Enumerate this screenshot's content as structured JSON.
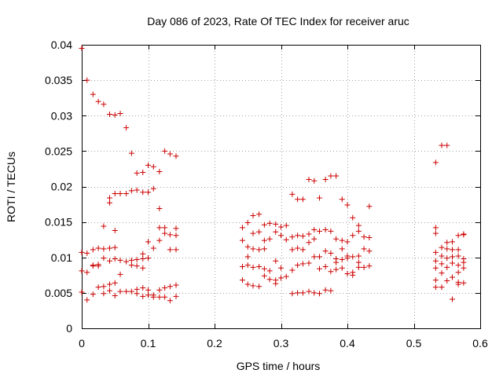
{
  "chart_data": {
    "type": "scatter",
    "title": "Day 086 of 2023, Rate Of TEC Index for receiver aruc",
    "xlabel": "GPS time / hours",
    "ylabel": "ROTI / TECUs",
    "xlim": [
      0,
      0.6
    ],
    "ylim": [
      0,
      0.04
    ],
    "xticks": [
      0,
      0.1,
      0.2,
      0.3,
      0.4,
      0.5,
      0.6
    ],
    "xtick_labels": [
      "0",
      "0.1",
      "0.2",
      "0.3",
      "0.4",
      "0.5",
      "0.6"
    ],
    "yticks": [
      0,
      0.005,
      0.01,
      0.015,
      0.02,
      0.025,
      0.03,
      0.035,
      0.04
    ],
    "ytick_labels": [
      "0",
      "0.005",
      "0.01",
      "0.015",
      "0.02",
      "0.025",
      "0.03",
      "0.035",
      "0.04"
    ],
    "grid": true,
    "marker": "+",
    "marker_color": "#cc0000",
    "series": [
      {
        "name": "ROTI",
        "points": [
          [
            0.0,
            0.0395
          ],
          [
            0.008,
            0.035
          ],
          [
            0.017,
            0.033
          ],
          [
            0.025,
            0.032
          ],
          [
            0.033,
            0.0316
          ],
          [
            0.042,
            0.0302
          ],
          [
            0.05,
            0.0301
          ],
          [
            0.058,
            0.0303
          ],
          [
            0.067,
            0.0283
          ],
          [
            0.075,
            0.0247
          ],
          [
            0.083,
            0.0219
          ],
          [
            0.092,
            0.022
          ],
          [
            0.1,
            0.023
          ],
          [
            0.108,
            0.0228
          ],
          [
            0.117,
            0.0221
          ],
          [
            0.125,
            0.025
          ],
          [
            0.133,
            0.0246
          ],
          [
            0.142,
            0.0243
          ],
          [
            0.033,
            0.0144
          ],
          [
            0.042,
            0.0177
          ],
          [
            0.042,
            0.0184
          ],
          [
            0.05,
            0.019
          ],
          [
            0.058,
            0.019
          ],
          [
            0.067,
            0.019
          ],
          [
            0.075,
            0.0194
          ],
          [
            0.083,
            0.0195
          ],
          [
            0.092,
            0.0192
          ],
          [
            0.1,
            0.0192
          ],
          [
            0.108,
            0.0197
          ],
          [
            0.117,
            0.0169
          ],
          [
            0.05,
            0.0138
          ],
          [
            0.0,
            0.0107
          ],
          [
            0.008,
            0.0106
          ],
          [
            0.017,
            0.0111
          ],
          [
            0.025,
            0.0113
          ],
          [
            0.033,
            0.0112
          ],
          [
            0.042,
            0.0113
          ],
          [
            0.05,
            0.0114
          ],
          [
            0.0,
            0.0081
          ],
          [
            0.008,
            0.0079
          ],
          [
            0.017,
            0.0089
          ],
          [
            0.025,
            0.009
          ],
          [
            0.033,
            0.0099
          ],
          [
            0.042,
            0.0095
          ],
          [
            0.05,
            0.0098
          ],
          [
            0.058,
            0.0096
          ],
          [
            0.067,
            0.0094
          ],
          [
            0.075,
            0.0096
          ],
          [
            0.083,
            0.0097
          ],
          [
            0.092,
            0.0098
          ],
          [
            0.1,
            0.0099
          ],
          [
            0.075,
            0.0089
          ],
          [
            0.083,
            0.0088
          ],
          [
            0.092,
            0.0085
          ],
          [
            0.092,
            0.0105
          ],
          [
            0.1,
            0.0122
          ],
          [
            0.108,
            0.0113
          ],
          [
            0.117,
            0.0124
          ],
          [
            0.117,
            0.0142
          ],
          [
            0.125,
            0.0134
          ],
          [
            0.125,
            0.0142
          ],
          [
            0.133,
            0.0111
          ],
          [
            0.133,
            0.0132
          ],
          [
            0.142,
            0.0111
          ],
          [
            0.142,
            0.0131
          ],
          [
            0.142,
            0.0141
          ],
          [
            0.058,
            0.0076
          ],
          [
            0.017,
            0.0088
          ],
          [
            0.025,
            0.0088
          ],
          [
            0.0,
            0.0051
          ],
          [
            0.008,
            0.004
          ],
          [
            0.017,
            0.0048
          ],
          [
            0.025,
            0.0058
          ],
          [
            0.033,
            0.0059
          ],
          [
            0.033,
            0.0049
          ],
          [
            0.042,
            0.0062
          ],
          [
            0.042,
            0.0053
          ],
          [
            0.05,
            0.0046
          ],
          [
            0.05,
            0.0064
          ],
          [
            0.058,
            0.0052
          ],
          [
            0.067,
            0.0052
          ],
          [
            0.075,
            0.0052
          ],
          [
            0.083,
            0.0055
          ],
          [
            0.083,
            0.0049
          ],
          [
            0.092,
            0.0057
          ],
          [
            0.092,
            0.0045
          ],
          [
            0.1,
            0.0054
          ],
          [
            0.1,
            0.0047
          ],
          [
            0.108,
            0.0047
          ],
          [
            0.108,
            0.0044
          ],
          [
            0.117,
            0.0054
          ],
          [
            0.117,
            0.0044
          ],
          [
            0.125,
            0.0057
          ],
          [
            0.125,
            0.0044
          ],
          [
            0.133,
            0.0059
          ],
          [
            0.133,
            0.0039
          ],
          [
            0.142,
            0.0061
          ],
          [
            0.142,
            0.0045
          ],
          [
            0.242,
            0.0142
          ],
          [
            0.25,
            0.0149
          ],
          [
            0.258,
            0.0159
          ],
          [
            0.267,
            0.0161
          ],
          [
            0.275,
            0.0146
          ],
          [
            0.283,
            0.0148
          ],
          [
            0.292,
            0.0147
          ],
          [
            0.3,
            0.0143
          ],
          [
            0.308,
            0.0145
          ],
          [
            0.242,
            0.0124
          ],
          [
            0.25,
            0.0115
          ],
          [
            0.258,
            0.0134
          ],
          [
            0.267,
            0.0136
          ],
          [
            0.275,
            0.0124
          ],
          [
            0.283,
            0.0126
          ],
          [
            0.292,
            0.0136
          ],
          [
            0.3,
            0.0131
          ],
          [
            0.308,
            0.0125
          ],
          [
            0.25,
            0.0101
          ],
          [
            0.258,
            0.0112
          ],
          [
            0.267,
            0.0111
          ],
          [
            0.275,
            0.0112
          ],
          [
            0.242,
            0.0087
          ],
          [
            0.25,
            0.0089
          ],
          [
            0.258,
            0.0086
          ],
          [
            0.267,
            0.0087
          ],
          [
            0.275,
            0.0084
          ],
          [
            0.283,
            0.0081
          ],
          [
            0.292,
            0.0095
          ],
          [
            0.3,
            0.0085
          ],
          [
            0.242,
            0.0068
          ],
          [
            0.25,
            0.0062
          ],
          [
            0.258,
            0.006
          ],
          [
            0.267,
            0.0059
          ],
          [
            0.275,
            0.0074
          ],
          [
            0.283,
            0.0069
          ],
          [
            0.292,
            0.0068
          ],
          [
            0.3,
            0.0071
          ],
          [
            0.308,
            0.0073
          ],
          [
            0.292,
            0.0063
          ],
          [
            0.317,
            0.0111
          ],
          [
            0.325,
            0.0113
          ],
          [
            0.333,
            0.0111
          ],
          [
            0.342,
            0.0121
          ],
          [
            0.35,
            0.0126
          ],
          [
            0.317,
            0.0129
          ],
          [
            0.325,
            0.0131
          ],
          [
            0.333,
            0.013
          ],
          [
            0.342,
            0.0133
          ],
          [
            0.35,
            0.0139
          ],
          [
            0.358,
            0.0137
          ],
          [
            0.367,
            0.0139
          ],
          [
            0.375,
            0.0137
          ],
          [
            0.383,
            0.0126
          ],
          [
            0.392,
            0.0124
          ],
          [
            0.4,
            0.0122
          ],
          [
            0.408,
            0.0131
          ],
          [
            0.417,
            0.0137
          ],
          [
            0.425,
            0.0129
          ],
          [
            0.433,
            0.0128
          ],
          [
            0.317,
            0.0082
          ],
          [
            0.325,
            0.0089
          ],
          [
            0.333,
            0.0091
          ],
          [
            0.342,
            0.0092
          ],
          [
            0.35,
            0.0101
          ],
          [
            0.358,
            0.0101
          ],
          [
            0.367,
            0.0109
          ],
          [
            0.375,
            0.0106
          ],
          [
            0.383,
            0.0098
          ],
          [
            0.392,
            0.0097
          ],
          [
            0.4,
            0.0099
          ],
          [
            0.408,
            0.0101
          ],
          [
            0.417,
            0.0102
          ],
          [
            0.425,
            0.0112
          ],
          [
            0.433,
            0.0109
          ],
          [
            0.317,
            0.0049
          ],
          [
            0.325,
            0.005
          ],
          [
            0.333,
            0.005
          ],
          [
            0.342,
            0.0052
          ],
          [
            0.35,
            0.005
          ],
          [
            0.358,
            0.0049
          ],
          [
            0.367,
            0.0054
          ],
          [
            0.375,
            0.0053
          ],
          [
            0.358,
            0.0084
          ],
          [
            0.367,
            0.0087
          ],
          [
            0.375,
            0.008
          ],
          [
            0.383,
            0.0083
          ],
          [
            0.392,
            0.0085
          ],
          [
            0.4,
            0.0077
          ],
          [
            0.408,
            0.0075
          ],
          [
            0.417,
            0.0086
          ],
          [
            0.425,
            0.0086
          ],
          [
            0.433,
            0.0088
          ],
          [
            0.408,
            0.0079
          ],
          [
            0.383,
            0.0093
          ],
          [
            0.317,
            0.0189
          ],
          [
            0.325,
            0.0182
          ],
          [
            0.333,
            0.0182
          ],
          [
            0.342,
            0.021
          ],
          [
            0.35,
            0.0208
          ],
          [
            0.358,
            0.0184
          ],
          [
            0.367,
            0.021
          ],
          [
            0.375,
            0.0215
          ],
          [
            0.383,
            0.0215
          ],
          [
            0.392,
            0.0182
          ],
          [
            0.4,
            0.0174
          ],
          [
            0.408,
            0.0156
          ],
          [
            0.417,
            0.0145
          ],
          [
            0.433,
            0.0172
          ],
          [
            0.392,
            0.0112
          ],
          [
            0.4,
            0.0102
          ],
          [
            0.417,
            0.0093
          ],
          [
            0.533,
            0.0234
          ],
          [
            0.542,
            0.0258
          ],
          [
            0.55,
            0.0258
          ],
          [
            0.533,
            0.0142
          ],
          [
            0.533,
            0.0134
          ],
          [
            0.533,
            0.0107
          ],
          [
            0.533,
            0.0095
          ],
          [
            0.533,
            0.0085
          ],
          [
            0.533,
            0.0068
          ],
          [
            0.533,
            0.0058
          ],
          [
            0.542,
            0.0114
          ],
          [
            0.542,
            0.0102
          ],
          [
            0.542,
            0.0091
          ],
          [
            0.542,
            0.0078
          ],
          [
            0.542,
            0.0058
          ],
          [
            0.55,
            0.0121
          ],
          [
            0.55,
            0.0112
          ],
          [
            0.55,
            0.0099
          ],
          [
            0.55,
            0.0086
          ],
          [
            0.55,
            0.0067
          ],
          [
            0.558,
            0.0122
          ],
          [
            0.558,
            0.0111
          ],
          [
            0.558,
            0.0101
          ],
          [
            0.558,
            0.0092
          ],
          [
            0.558,
            0.0072
          ],
          [
            0.558,
            0.0041
          ],
          [
            0.567,
            0.0111
          ],
          [
            0.567,
            0.0102
          ],
          [
            0.567,
            0.0089
          ],
          [
            0.567,
            0.0079
          ],
          [
            0.567,
            0.0062
          ],
          [
            0.575,
            0.0132
          ],
          [
            0.575,
            0.0133
          ],
          [
            0.575,
            0.0098
          ],
          [
            0.575,
            0.0093
          ],
          [
            0.575,
            0.0085
          ],
          [
            0.575,
            0.0064
          ],
          [
            0.567,
            0.0065
          ],
          [
            0.567,
            0.0131
          ]
        ]
      }
    ]
  }
}
